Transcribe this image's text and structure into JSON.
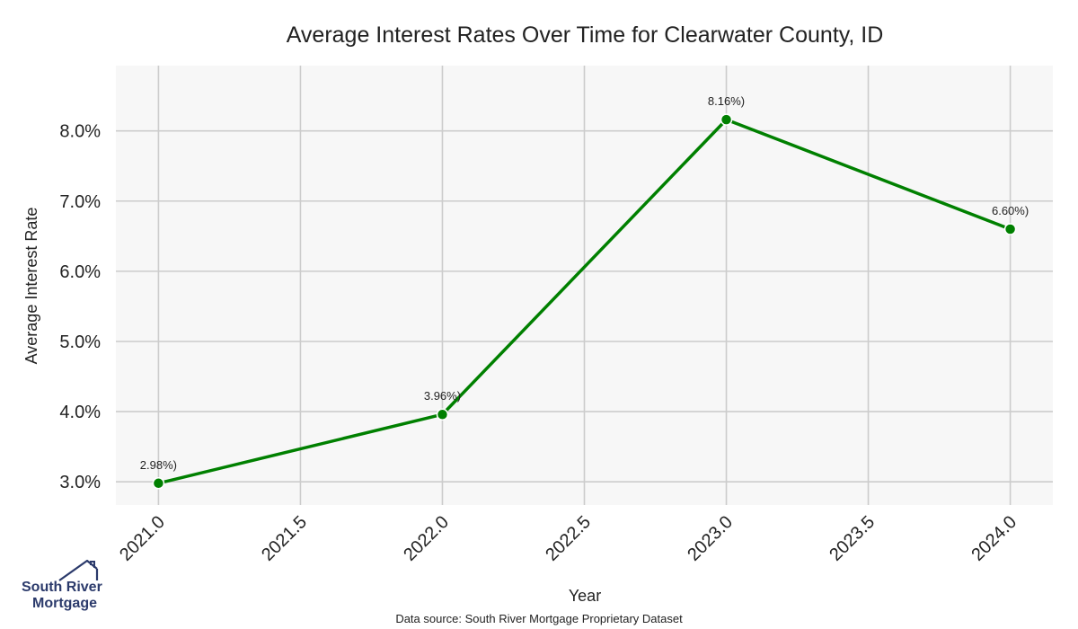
{
  "chart_data": {
    "type": "line",
    "title": "Average Interest Rates Over Time for Clearwater County, ID",
    "xlabel": "Year",
    "ylabel": "Average Interest Rate",
    "x": [
      2021.0,
      2022.0,
      2023.0,
      2024.0
    ],
    "series": [
      {
        "values": [
          2.98,
          3.96,
          8.16,
          6.6
        ],
        "color": "#008000"
      }
    ],
    "data_labels": [
      "2.98%)",
      "3.96%)",
      "8.16%)",
      "6.60%)"
    ],
    "xticks": [
      2021.0,
      2021.5,
      2022.0,
      2022.5,
      2023.0,
      2023.5,
      2024.0
    ],
    "xtick_labels": [
      "2021.0",
      "2021.5",
      "2022.0",
      "2022.5",
      "2023.0",
      "2023.5",
      "2024.0"
    ],
    "yticks": [
      3,
      4,
      5,
      6,
      7,
      8
    ],
    "ytick_labels": [
      "3.0%",
      "4.0%",
      "5.0%",
      "6.0%",
      "7.0%",
      "8.0%"
    ],
    "xlim": [
      2020.85,
      2024.15
    ],
    "ylim": [
      2.67,
      8.93
    ],
    "grid": true,
    "background": "#f7f7f7",
    "grid_color": "#cccccc"
  },
  "source_note": "Data source: South River Mortgage Proprietary Dataset",
  "logo": {
    "line1": "South River",
    "line2": "Mortgage",
    "color": "#2b3a6b"
  }
}
